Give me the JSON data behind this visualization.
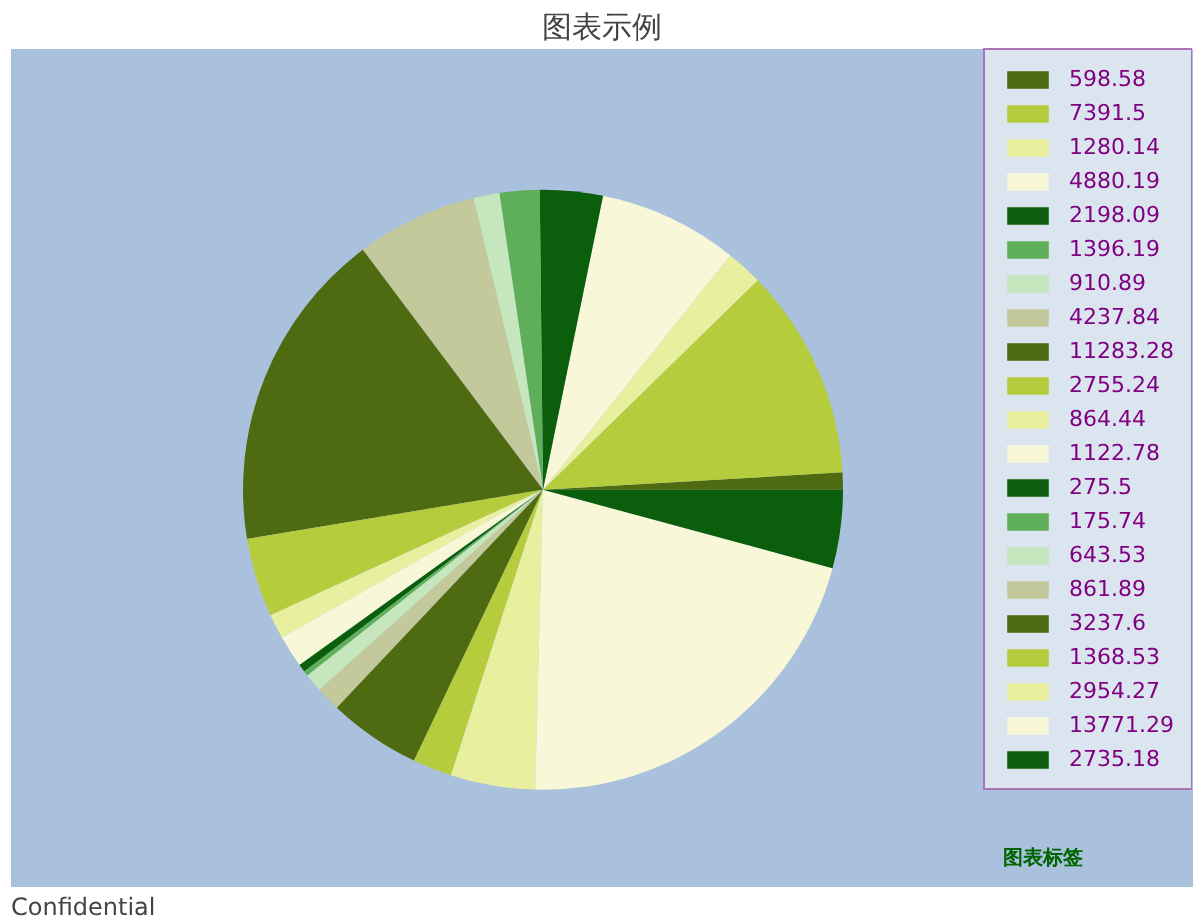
{
  "chart_data": {
    "type": "pie",
    "title": "图表示例",
    "categories": [
      "598.58",
      "7391.5",
      "1280.14",
      "4880.19",
      "2198.09",
      "1396.19",
      "910.89",
      "4237.84",
      "11283.28",
      "2755.24",
      "864.44",
      "1122.78",
      "275.5",
      "175.74",
      "643.53",
      "861.89",
      "3237.6",
      "1368.53",
      "2954.27",
      "13771.29",
      "2735.18"
    ],
    "values": [
      598.58,
      7391.5,
      1280.14,
      4880.19,
      2198.09,
      1396.19,
      910.89,
      4237.84,
      11283.28,
      2755.24,
      864.44,
      1122.78,
      275.5,
      175.74,
      643.53,
      861.89,
      3237.6,
      1368.53,
      2954.27,
      13771.29,
      2735.18
    ],
    "colors": [
      "#4f6b12",
      "#b5cc3c",
      "#e8f0a0",
      "#f8f8d8",
      "#0b5e0b",
      "#5faf5a",
      "#c6e6bd",
      "#c3c99b",
      "#4f6b12",
      "#b5cc3c",
      "#e8f0a0",
      "#f8f8d8",
      "#0b5e0b",
      "#5faf5a",
      "#c6e6bd",
      "#c3c99b",
      "#4f6b12",
      "#b5cc3c",
      "#e8f0a0",
      "#f8f8d8",
      "#0b5e0b"
    ],
    "legend": "right",
    "legend_title": "图表标签",
    "annotations": [
      "Confidential"
    ]
  }
}
